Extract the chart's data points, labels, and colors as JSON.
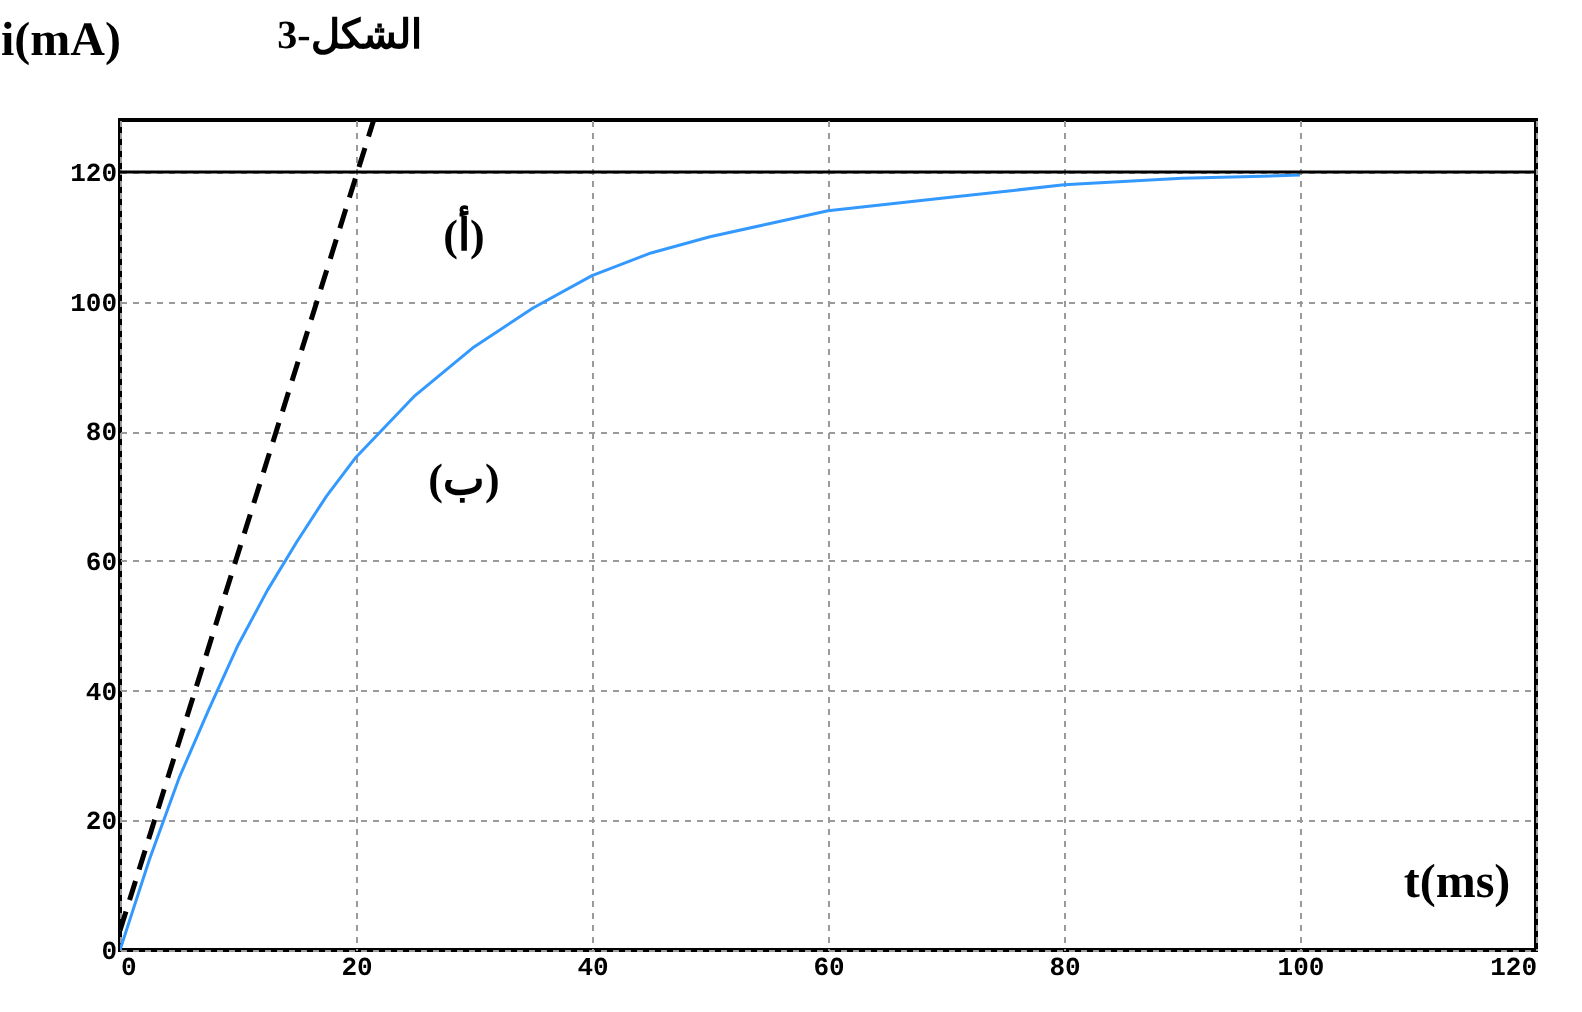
{
  "chart_data": {
    "type": "line",
    "title": "الشكل-3",
    "xlabel": "t(ms)",
    "ylabel": "i(mA)",
    "xlim": [
      0,
      120
    ],
    "ylim": [
      0,
      128
    ],
    "xticks": [
      0,
      20,
      40,
      60,
      80,
      100,
      120
    ],
    "yticks": [
      0,
      20,
      40,
      60,
      80,
      100,
      120
    ],
    "grid": true,
    "marker": "none",
    "series": [
      {
        "color": "#3399ff",
        "line_style": "solid",
        "x": [
          0,
          2.5,
          5,
          7.5,
          10,
          12.5,
          15,
          17.5,
          20,
          25,
          30,
          35,
          40,
          45,
          50,
          55,
          60,
          70,
          80,
          90,
          100
        ],
        "values": [
          0,
          14,
          26.5,
          37,
          47,
          55.5,
          63,
          70,
          76,
          85.5,
          93,
          99,
          104,
          107.5,
          110,
          112,
          114,
          116,
          118,
          119,
          119.5
        ]
      },
      {
        "color": "#000000",
        "line_style": "dashed",
        "x": [
          0,
          21.5
        ],
        "values": [
          3,
          128
        ]
      },
      {
        "color": "#000000",
        "line_style": "solid",
        "x": [
          0,
          120
        ],
        "values": [
          120,
          120
        ]
      }
    ],
    "annotations": [
      "(أ)",
      "(ب)"
    ]
  }
}
